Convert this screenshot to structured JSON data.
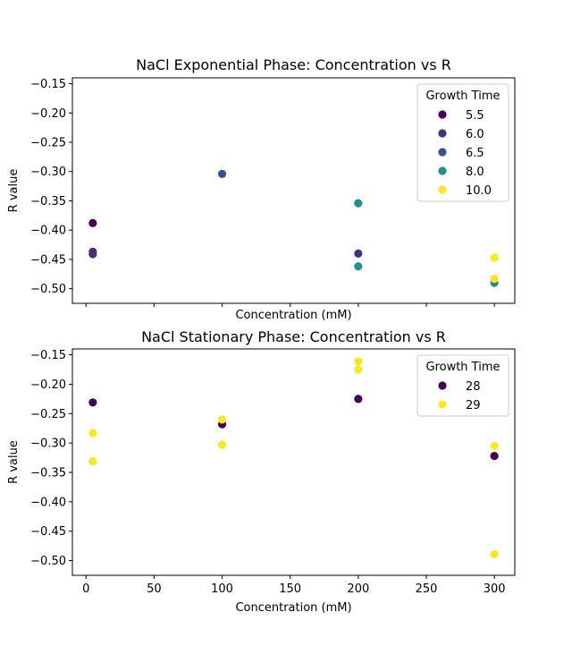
{
  "chart_data": [
    {
      "type": "scatter",
      "title": "NaCl Exponential Phase: Concentration vs R",
      "xlabel": "Concentration (mM)",
      "ylabel": "R value",
      "xlim": [
        -10,
        315
      ],
      "ylim": [
        -0.525,
        -0.14
      ],
      "x_ticks": [
        0,
        50,
        100,
        150,
        200,
        250,
        300
      ],
      "x_tick_labels_shown": false,
      "y_ticks": [
        -0.15,
        -0.2,
        -0.25,
        -0.3,
        -0.35,
        -0.4,
        -0.45,
        -0.5
      ],
      "y_tick_labels": [
        "−0.15",
        "−0.20",
        "−0.25",
        "−0.30",
        "−0.35",
        "−0.40",
        "−0.45",
        "−0.50"
      ],
      "grid": false,
      "legend": {
        "title": "Growth Time",
        "placement": "upper right"
      },
      "series": [
        {
          "name": "5.5",
          "color": "#440154",
          "points": [
            [
              5,
              -0.388
            ]
          ]
        },
        {
          "name": "6.0",
          "color": "#472f7d",
          "points": [
            [
              5,
              -0.437
            ],
            [
              5,
              -0.441
            ],
            [
              200,
              -0.44
            ]
          ]
        },
        {
          "name": "6.5",
          "color": "#3b518b",
          "points": [
            [
              100,
              -0.304
            ]
          ]
        },
        {
          "name": "8.0",
          "color": "#21908d",
          "points": [
            [
              200,
              -0.354
            ],
            [
              200,
              -0.462
            ],
            [
              300,
              -0.49
            ]
          ]
        },
        {
          "name": "10.0",
          "color": "#fde725",
          "points": [
            [
              300,
              -0.447
            ],
            [
              300,
              -0.483
            ]
          ]
        }
      ]
    },
    {
      "type": "scatter",
      "title": "NaCl Stationary Phase: Concentration vs R",
      "xlabel": "Concentration (mM)",
      "ylabel": "R value",
      "xlim": [
        -10,
        315
      ],
      "ylim": [
        -0.525,
        -0.14
      ],
      "x_ticks": [
        0,
        50,
        100,
        150,
        200,
        250,
        300
      ],
      "x_tick_labels": [
        "0",
        "50",
        "100",
        "150",
        "200",
        "250",
        "300"
      ],
      "x_tick_labels_shown": true,
      "y_ticks": [
        -0.15,
        -0.2,
        -0.25,
        -0.3,
        -0.35,
        -0.4,
        -0.45,
        -0.5
      ],
      "y_tick_labels": [
        "−0.15",
        "−0.20",
        "−0.25",
        "−0.30",
        "−0.35",
        "−0.40",
        "−0.45",
        "−0.50"
      ],
      "grid": false,
      "legend": {
        "title": "Growth Time",
        "placement": "upper right"
      },
      "series": [
        {
          "name": "28",
          "color": "#440154",
          "points": [
            [
              5,
              -0.231
            ],
            [
              100,
              -0.268
            ],
            [
              200,
              -0.225
            ],
            [
              300,
              -0.322
            ]
          ]
        },
        {
          "name": "29",
          "color": "#fde725",
          "points": [
            [
              5,
              -0.283
            ],
            [
              5,
              -0.331
            ],
            [
              100,
              -0.26
            ],
            [
              100,
              -0.303
            ],
            [
              200,
              -0.161
            ],
            [
              200,
              -0.175
            ],
            [
              300,
              -0.305
            ],
            [
              300,
              -0.489
            ]
          ]
        }
      ]
    }
  ]
}
